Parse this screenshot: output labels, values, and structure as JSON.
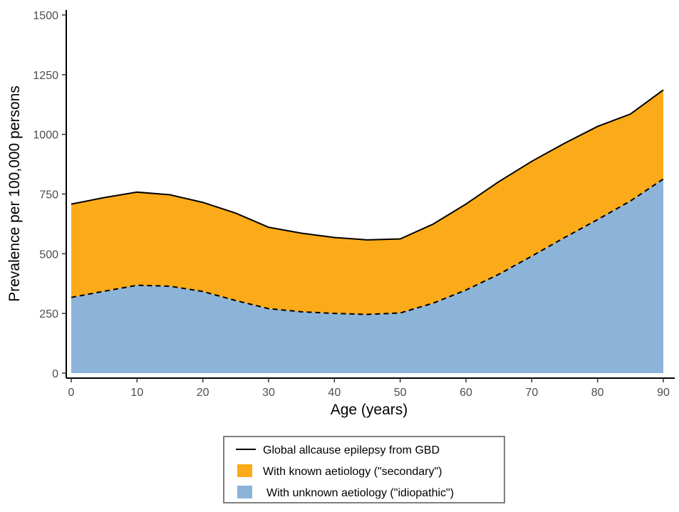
{
  "chart_data": {
    "type": "area",
    "xlabel": "Age (years)",
    "ylabel": "Prevalence per 100,000 persons",
    "xlim": [
      0,
      90
    ],
    "ylim": [
      0,
      1500
    ],
    "x_ticks": [
      0,
      10,
      20,
      30,
      40,
      50,
      60,
      70,
      80,
      90
    ],
    "y_ticks": [
      0,
      250,
      500,
      750,
      1000,
      1250,
      1500
    ],
    "x_tick_labels": [
      "0",
      "10",
      "20",
      "30",
      "40",
      "50",
      "60",
      "70",
      "80",
      "90"
    ],
    "y_tick_labels": [
      "0",
      "250",
      "500",
      "750",
      "1000",
      "1250",
      "1500"
    ],
    "grid": false,
    "legend_position": "bottom",
    "x": [
      0,
      5,
      10,
      15,
      20,
      25,
      30,
      35,
      40,
      45,
      50,
      55,
      60,
      65,
      70,
      75,
      80,
      85,
      90
    ],
    "series": [
      {
        "name": "With unknown aetiology (\"idiopathic\")",
        "kind": "area",
        "color": "#8cb4d8",
        "values": [
          317,
          343,
          368,
          364,
          342,
          304,
          270,
          257,
          250,
          246,
          252,
          293,
          348,
          414,
          490,
          568,
          643,
          721,
          813
        ]
      },
      {
        "name": "With known aetiology (\"secondary\")",
        "kind": "area",
        "color": "#fbab19",
        "values": [
          391,
          392,
          390,
          383,
          373,
          366,
          341,
          329,
          318,
          312,
          310,
          331,
          360,
          388,
          397,
          395,
          390,
          364,
          373
        ]
      },
      {
        "name": "Global allcause epilepsy from GBD",
        "kind": "line",
        "color": "#000000",
        "values": [
          708,
          735,
          758,
          747,
          715,
          670,
          611,
          586,
          568,
          558,
          562,
          624,
          708,
          802,
          887,
          963,
          1033,
          1085,
          1186
        ]
      }
    ]
  }
}
